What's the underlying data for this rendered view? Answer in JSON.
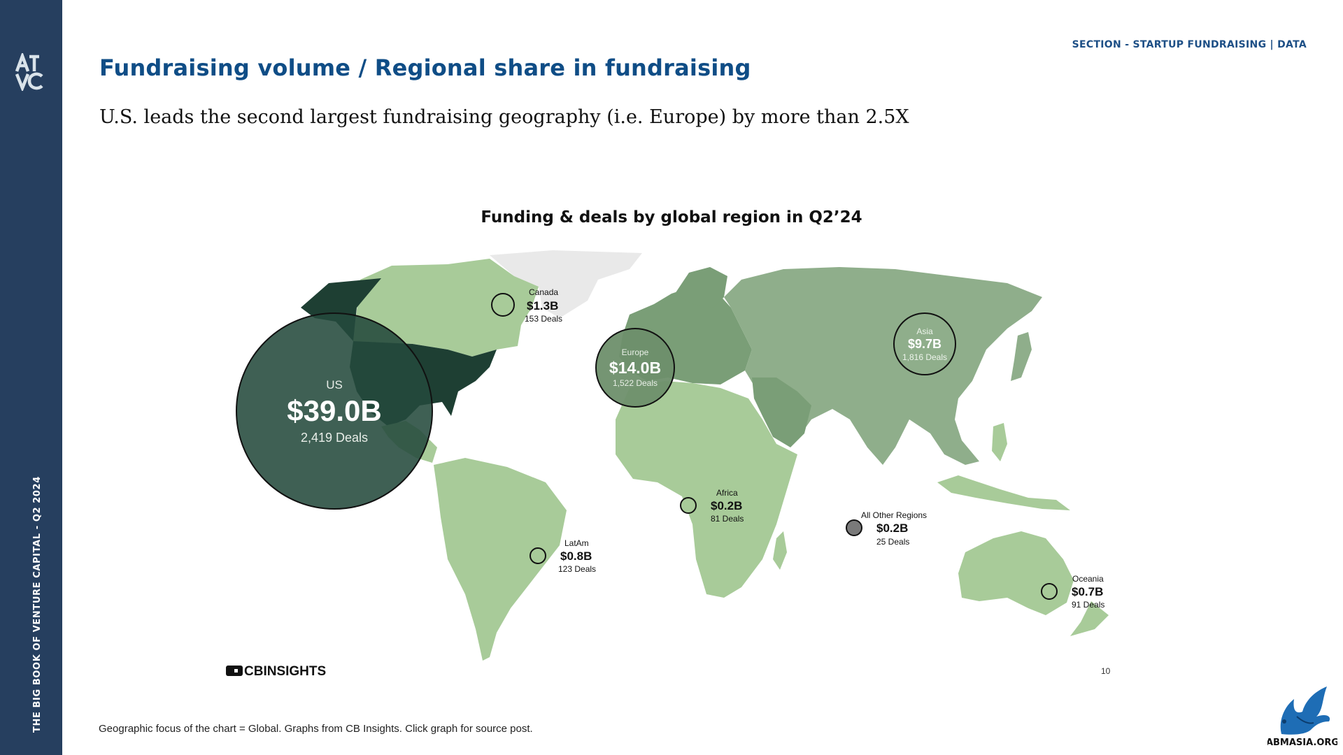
{
  "sidebar": {
    "logo_text": "ATVC",
    "vertical_text": "THE BIG BOOK OF VENTURE CAPITAL - Q2 2024"
  },
  "header": {
    "section_label": "SECTION - STARTUP FUNDRAISING | DATA",
    "title": "Fundraising volume / Regional share in fundraising",
    "subtitle": "U.S. leads the second largest fundraising geography (i.e. Europe) by more than 2.5X"
  },
  "figure": {
    "title": "Funding & deals by global region in Q2’24",
    "source_logo": "CBINSIGHTS",
    "page_number": "10",
    "regions": [
      {
        "name": "US",
        "amount": "$39.0B",
        "deals": "2,419 Deals"
      },
      {
        "name": "Europe",
        "amount": "$14.0B",
        "deals": "1,522 Deals"
      },
      {
        "name": "Asia",
        "amount": "$9.7B",
        "deals": "1,816 Deals"
      },
      {
        "name": "Canada",
        "amount": "$1.3B",
        "deals": "153 Deals"
      },
      {
        "name": "LatAm",
        "amount": "$0.8B",
        "deals": "123 Deals"
      },
      {
        "name": "Oceania",
        "amount": "$0.7B",
        "deals": "91 Deals"
      },
      {
        "name": "Africa",
        "amount": "$0.2B",
        "deals": "81 Deals"
      },
      {
        "name": "All Other Regions",
        "amount": "$0.2B",
        "deals": "25 Deals"
      }
    ]
  },
  "footnote": "Geographic focus of the chart = Global. Graphs from CB Insights. Click graph for source post.",
  "watermark": "ABMASIA.ORG",
  "colors": {
    "sidebar": "#263f5f",
    "title": "#0f4d86",
    "us_dark": "#1e3f33",
    "europe_mid": "#7a9e77",
    "asia_mid": "#8fae8b",
    "light_green": "#a8cb99"
  }
}
